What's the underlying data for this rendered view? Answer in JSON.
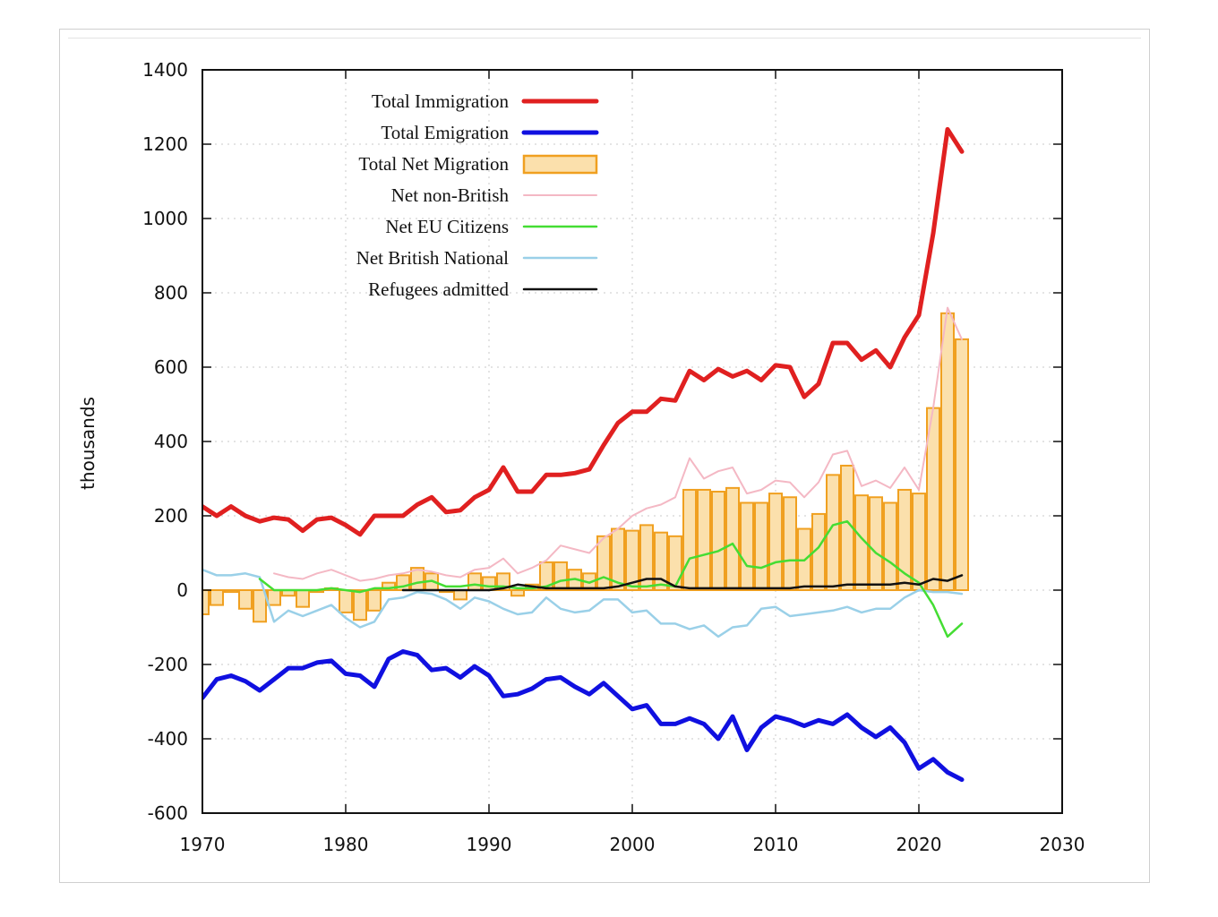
{
  "chart_data": {
    "type": "line",
    "title": "",
    "xlabel": "",
    "ylabel": "thousands",
    "xlim": [
      1970,
      2030
    ],
    "ylim": [
      -600,
      1400
    ],
    "xticks": [
      1970,
      1980,
      1990,
      2000,
      2010,
      2020,
      2030
    ],
    "yticks": [
      -600,
      -400,
      -200,
      0,
      200,
      400,
      600,
      800,
      1000,
      1200,
      1400
    ],
    "grid": true,
    "legend_position": "top-left",
    "legend": [
      {
        "name": "Total Immigration",
        "color": "#e02020",
        "style": "line-thick"
      },
      {
        "name": "Total Emigration",
        "color": "#1010e0",
        "style": "line-thick"
      },
      {
        "name": "Total Net Migration",
        "color": "#f0a020",
        "fill": "#fbe0ac",
        "style": "bar"
      },
      {
        "name": "Net non-British",
        "color": "#f4b8c4",
        "style": "line-thin"
      },
      {
        "name": "Net EU Citizens",
        "color": "#44dd33",
        "style": "line"
      },
      {
        "name": "Net British National",
        "color": "#9ad0e8",
        "style": "line"
      },
      {
        "name": "Refugees admitted",
        "color": "#111111",
        "style": "line"
      }
    ],
    "bars": {
      "name": "Total Net Migration",
      "x": [
        1970,
        1971,
        1972,
        1973,
        1974,
        1975,
        1976,
        1977,
        1978,
        1979,
        1980,
        1981,
        1982,
        1983,
        1984,
        1985,
        1986,
        1987,
        1988,
        1989,
        1990,
        1991,
        1992,
        1993,
        1994,
        1995,
        1996,
        1997,
        1998,
        1999,
        2000,
        2001,
        2002,
        2003,
        2004,
        2005,
        2006,
        2007,
        2008,
        2009,
        2010,
        2011,
        2012,
        2013,
        2014,
        2015,
        2016,
        2017,
        2018,
        2019,
        2020,
        2021,
        2022,
        2023
      ],
      "values": [
        -65,
        -40,
        -5,
        -50,
        -85,
        -40,
        -15,
        -45,
        -5,
        5,
        -60,
        -80,
        -55,
        20,
        40,
        60,
        45,
        -5,
        -25,
        45,
        35,
        45,
        -15,
        15,
        75,
        75,
        55,
        45,
        145,
        165,
        160,
        175,
        155,
        145,
        270,
        270,
        265,
        275,
        235,
        235,
        260,
        250,
        165,
        205,
        310,
        335,
        255,
        250,
        235,
        270,
        260,
        490,
        745,
        675
      ]
    },
    "series": [
      {
        "name": "Total Immigration",
        "x": [
          1970,
          1971,
          1972,
          1973,
          1974,
          1975,
          1976,
          1977,
          1978,
          1979,
          1980,
          1981,
          1982,
          1983,
          1984,
          1985,
          1986,
          1987,
          1988,
          1989,
          1990,
          1991,
          1992,
          1993,
          1994,
          1995,
          1996,
          1997,
          1998,
          1999,
          2000,
          2001,
          2002,
          2003,
          2004,
          2005,
          2006,
          2007,
          2008,
          2009,
          2010,
          2011,
          2012,
          2013,
          2014,
          2015,
          2016,
          2017,
          2018,
          2019,
          2020,
          2021,
          2022,
          2023
        ],
        "values": [
          225,
          200,
          225,
          200,
          185,
          195,
          190,
          160,
          190,
          195,
          175,
          150,
          200,
          200,
          200,
          230,
          250,
          210,
          215,
          250,
          270,
          330,
          265,
          265,
          310,
          310,
          315,
          325,
          390,
          450,
          480,
          480,
          515,
          510,
          590,
          565,
          595,
          575,
          590,
          565,
          605,
          600,
          520,
          555,
          665,
          665,
          620,
          645,
          600,
          680,
          740,
          960,
          1240,
          1180
        ]
      },
      {
        "name": "Total Emigration",
        "x": [
          1970,
          1971,
          1972,
          1973,
          1974,
          1975,
          1976,
          1977,
          1978,
          1979,
          1980,
          1981,
          1982,
          1983,
          1984,
          1985,
          1986,
          1987,
          1988,
          1989,
          1990,
          1991,
          1992,
          1993,
          1994,
          1995,
          1996,
          1997,
          1998,
          1999,
          2000,
          2001,
          2002,
          2003,
          2004,
          2005,
          2006,
          2007,
          2008,
          2009,
          2010,
          2011,
          2012,
          2013,
          2014,
          2015,
          2016,
          2017,
          2018,
          2019,
          2020,
          2021,
          2022,
          2023
        ],
        "values": [
          -290,
          -240,
          -230,
          -245,
          -270,
          -240,
          -210,
          -210,
          -195,
          -190,
          -225,
          -230,
          -260,
          -185,
          -165,
          -175,
          -215,
          -210,
          -235,
          -205,
          -230,
          -285,
          -280,
          -265,
          -240,
          -235,
          -260,
          -280,
          -250,
          -285,
          -320,
          -310,
          -360,
          -360,
          -345,
          -360,
          -400,
          -340,
          -430,
          -370,
          -340,
          -350,
          -365,
          -350,
          -360,
          -335,
          -370,
          -395,
          -370,
          -410,
          -480,
          -455,
          -490,
          -510
        ]
      },
      {
        "name": "Net non-British",
        "x": [
          1975,
          1976,
          1977,
          1978,
          1979,
          1980,
          1981,
          1982,
          1983,
          1984,
          1985,
          1986,
          1987,
          1988,
          1989,
          1990,
          1991,
          1992,
          1993,
          1994,
          1995,
          1996,
          1997,
          1998,
          1999,
          2000,
          2001,
          2002,
          2003,
          2004,
          2005,
          2006,
          2007,
          2008,
          2009,
          2010,
          2011,
          2012,
          2013,
          2014,
          2015,
          2016,
          2017,
          2018,
          2019,
          2020,
          2021,
          2022,
          2023
        ],
        "values": [
          45,
          35,
          30,
          45,
          55,
          40,
          25,
          30,
          40,
          45,
          55,
          50,
          40,
          35,
          55,
          60,
          85,
          45,
          60,
          80,
          120,
          110,
          100,
          140,
          165,
          200,
          220,
          230,
          250,
          355,
          300,
          320,
          330,
          260,
          270,
          295,
          290,
          250,
          290,
          365,
          375,
          280,
          295,
          275,
          330,
          270,
          490,
          760,
          675
        ]
      },
      {
        "name": "Net EU Citizens",
        "x": [
          1974,
          1975,
          1976,
          1977,
          1978,
          1979,
          1980,
          1981,
          1982,
          1983,
          1984,
          1985,
          1986,
          1987,
          1988,
          1989,
          1990,
          1991,
          1992,
          1993,
          1994,
          1995,
          1996,
          1997,
          1998,
          1999,
          2000,
          2001,
          2002,
          2003,
          2004,
          2005,
          2006,
          2007,
          2008,
          2009,
          2010,
          2011,
          2012,
          2013,
          2014,
          2015,
          2016,
          2017,
          2018,
          2019,
          2020,
          2021,
          2022,
          2023
        ],
        "values": [
          30,
          0,
          0,
          0,
          0,
          5,
          0,
          -5,
          5,
          5,
          10,
          20,
          25,
          10,
          10,
          15,
          10,
          10,
          5,
          5,
          10,
          25,
          30,
          20,
          35,
          20,
          10,
          10,
          15,
          10,
          85,
          95,
          105,
          125,
          65,
          60,
          75,
          80,
          80,
          115,
          175,
          185,
          140,
          100,
          75,
          45,
          20,
          -40,
          -125,
          -90
        ]
      },
      {
        "name": "Net British National",
        "x": [
          1970,
          1971,
          1972,
          1973,
          1974,
          1975,
          1976,
          1977,
          1978,
          1979,
          1980,
          1981,
          1982,
          1983,
          1984,
          1985,
          1986,
          1987,
          1988,
          1989,
          1990,
          1991,
          1992,
          1993,
          1994,
          1995,
          1996,
          1997,
          1998,
          1999,
          2000,
          2001,
          2002,
          2003,
          2004,
          2005,
          2006,
          2007,
          2008,
          2009,
          2010,
          2011,
          2012,
          2013,
          2014,
          2015,
          2016,
          2017,
          2018,
          2019,
          2020,
          2021,
          2022,
          2023
        ],
        "values": [
          55,
          40,
          40,
          45,
          35,
          -85,
          -55,
          -70,
          -55,
          -40,
          -75,
          -100,
          -85,
          -25,
          -20,
          -5,
          -10,
          -25,
          -50,
          -20,
          -30,
          -50,
          -65,
          -60,
          -20,
          -50,
          -60,
          -55,
          -25,
          -25,
          -60,
          -55,
          -90,
          -90,
          -105,
          -95,
          -125,
          -100,
          -95,
          -50,
          -45,
          -70,
          -65,
          -60,
          -55,
          -45,
          -60,
          -50,
          -50,
          -20,
          0,
          -5,
          -5,
          -10
        ]
      },
      {
        "name": "Refugees admitted",
        "x": [
          1984,
          1985,
          1986,
          1987,
          1988,
          1989,
          1990,
          1991,
          1992,
          1993,
          1994,
          1995,
          1996,
          1997,
          1998,
          1999,
          2000,
          2001,
          2002,
          2003,
          2004,
          2005,
          2006,
          2007,
          2008,
          2009,
          2010,
          2011,
          2012,
          2013,
          2014,
          2015,
          2016,
          2017,
          2018,
          2019,
          2020,
          2021,
          2022,
          2023
        ],
        "values": [
          0,
          0,
          0,
          0,
          0,
          0,
          0,
          5,
          15,
          10,
          5,
          5,
          5,
          5,
          5,
          10,
          20,
          30,
          30,
          10,
          5,
          5,
          5,
          5,
          5,
          5,
          5,
          5,
          10,
          10,
          10,
          15,
          15,
          15,
          15,
          20,
          15,
          30,
          25,
          40
        ]
      }
    ]
  }
}
